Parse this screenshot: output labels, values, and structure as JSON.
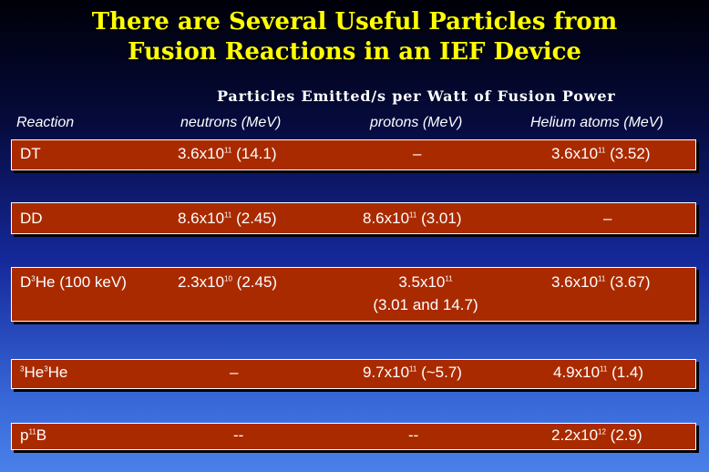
{
  "title": {
    "line1": "There are Several Useful Particles from",
    "line2": "Fusion Reactions in an IEF Device"
  },
  "subtitle": "Particles Emitted/s per Watt of Fusion Power",
  "headers": {
    "reaction": "Reaction",
    "neutrons": "neutrons (MeV)",
    "protons": "protons (MeV)",
    "helium": "Helium atoms (MeV)"
  },
  "rows": [
    {
      "reaction": {
        "pre": "",
        "sup1": "",
        "mid": "DT",
        "sup2": "",
        "post": ""
      },
      "neutrons": {
        "base": "3.6x10",
        "exp": "11",
        "rest": " (14.1)"
      },
      "protons": {
        "text": "–"
      },
      "helium": {
        "base": "3.6x10",
        "exp": "11",
        "rest": " (3.52)"
      }
    },
    {
      "reaction": {
        "pre": "",
        "sup1": "",
        "mid": "DD",
        "sup2": "",
        "post": ""
      },
      "neutrons": {
        "base": "8.6x10",
        "exp": "11",
        "rest": " (2.45)"
      },
      "protons": {
        "base": "8.6x10",
        "exp": "11",
        "rest": " (3.01)"
      },
      "helium": {
        "text": "–"
      }
    },
    {
      "reaction": {
        "pre": "D",
        "sup1": "3",
        "mid": "He (100 keV)",
        "sup2": "",
        "post": ""
      },
      "neutrons": {
        "base": "2.3x10",
        "exp": "10",
        "rest": " (2.45)"
      },
      "protons": {
        "base": "3.5x10",
        "exp": "11",
        "rest": "",
        "line2": "(3.01 and 14.7)"
      },
      "helium": {
        "base": "3.6x10",
        "exp": "11",
        "rest": " (3.67)"
      }
    },
    {
      "reaction": {
        "pre": "",
        "sup1": "3",
        "mid": "He",
        "sup2": "3",
        "post": "He"
      },
      "neutrons": {
        "text": "–"
      },
      "protons": {
        "base": "9.7x10",
        "exp": "11",
        "rest": " (~5.7)"
      },
      "helium": {
        "base": "4.9x10",
        "exp": "11",
        "rest": " (1.4)"
      }
    },
    {
      "reaction": {
        "pre": "p",
        "sup1": "11",
        "mid": "B",
        "sup2": "",
        "post": ""
      },
      "neutrons": {
        "text": "--"
      },
      "protons": {
        "text": "--"
      },
      "helium": {
        "base": "2.2x10",
        "exp": "12",
        "rest": " (2.9)"
      }
    }
  ]
}
